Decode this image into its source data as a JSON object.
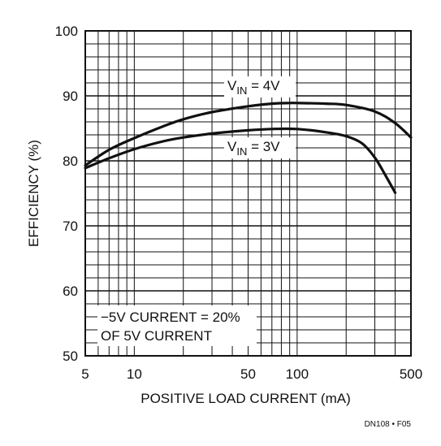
{
  "chart_data": {
    "type": "line",
    "xlabel": "POSITIVE LOAD CURRENT (mA)",
    "ylabel": "EFFICIENCY (%)",
    "x_scale": "log",
    "xlim": [
      5,
      500
    ],
    "ylim": [
      50,
      100
    ],
    "x_ticks": [
      5,
      10,
      50,
      100,
      500
    ],
    "y_ticks": [
      50,
      60,
      70,
      80,
      90,
      100
    ],
    "grid": true,
    "series": [
      {
        "name_main": "V",
        "name_sub": "IN",
        "name_value": " = 4V",
        "x": [
          5,
          7,
          10,
          15,
          20,
          30,
          50,
          70,
          90,
          100,
          150,
          200,
          300,
          400,
          500
        ],
        "y": [
          79.3,
          81.7,
          83.5,
          85.3,
          86.4,
          87.5,
          88.4,
          88.8,
          88.9,
          88.9,
          88.8,
          88.6,
          87.6,
          85.8,
          83.6
        ]
      },
      {
        "name_main": "V",
        "name_sub": "IN",
        "name_value": " = 3V",
        "x": [
          5,
          7,
          10,
          15,
          20,
          30,
          50,
          70,
          100,
          150,
          200,
          250,
          300,
          350,
          400
        ],
        "y": [
          78.9,
          80.4,
          81.8,
          83.0,
          83.6,
          84.2,
          84.7,
          84.9,
          84.9,
          84.4,
          83.8,
          82.7,
          80.5,
          77.7,
          75.1
        ]
      }
    ],
    "annotations": {
      "note_line1": "−5V CURRENT = 20%",
      "note_line2": "OF 5V CURRENT"
    },
    "figure_code": "DN108 • F05"
  }
}
